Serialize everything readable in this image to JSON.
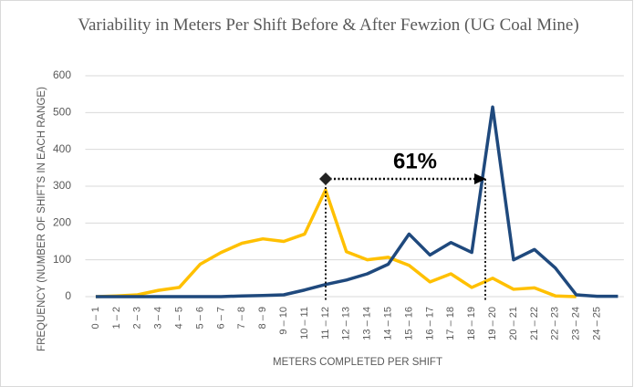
{
  "chart_data": {
    "type": "line",
    "title": "Variability in Meters Per Shift Before & After Fewzion (UG Coal Mine)",
    "x_label": "METERS COMPLETED PER SHIFT",
    "y_label": "FREQUENCY (NUMBER OF SHIFTS IN EACH RANGE)",
    "annotations": [
      {
        "text": "61%"
      }
    ],
    "categories": [
      "0 – 1",
      "1 – 2",
      "2 – 3",
      "3 – 4",
      "4 – 5",
      "5 – 6",
      "6 – 7",
      "7 – 8",
      "8 – 9",
      "9 – 10",
      "10 – 11",
      "11 – 12",
      "12 – 13",
      "13 – 14",
      "14 – 15",
      "15 – 16",
      "16 – 17",
      "17 – 18",
      "18 – 19",
      "19 – 20",
      "20 – 21",
      "21 – 22",
      "22 – 23",
      "23 – 24",
      "24 – 25",
      null
    ],
    "series": [
      {
        "color": "#ffc000",
        "values": [
          0,
          2,
          5,
          17,
          25,
          88,
          120,
          145,
          157,
          150,
          170,
          290,
          122,
          100,
          107,
          85,
          40,
          62,
          25,
          50,
          20,
          24,
          2,
          0,
          null,
          null
        ]
      },
      {
        "color": "#1f497d",
        "values": [
          0,
          0,
          0,
          0,
          0,
          0,
          0,
          2,
          3,
          5,
          18,
          33,
          45,
          62,
          88,
          170,
          113,
          147,
          120,
          515,
          100,
          128,
          78,
          5,
          1,
          1
        ]
      }
    ],
    "ylim": [
      0,
      600
    ],
    "yticks": [
      0,
      100,
      200,
      300,
      400,
      500,
      600
    ],
    "grid": true
  }
}
